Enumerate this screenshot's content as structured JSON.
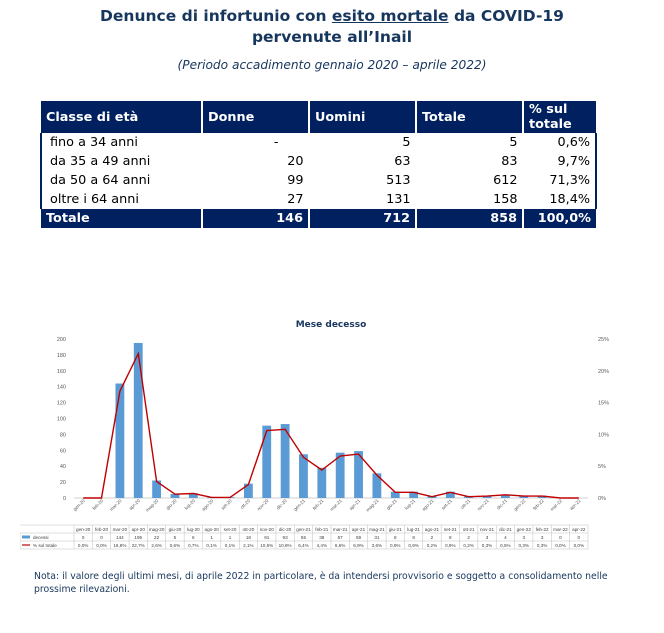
{
  "header": {
    "title_part1": "Denunce di infortunio con ",
    "title_underlined": "esito mortale",
    "title_part2": " da COVID-19",
    "title_line2": "pervenute all’Inail",
    "subtitle": "(Periodo accadimento gennaio 2020 – aprile 2022)"
  },
  "table": {
    "headers": [
      "Classe di età",
      "Donne",
      "Uomini",
      "Totale",
      "% sul totale"
    ],
    "rows": [
      [
        "fino a 34 anni",
        "-",
        "5",
        "5",
        "0,6%"
      ],
      [
        "da 35 a 49 anni",
        "20",
        "63",
        "83",
        "9,7%"
      ],
      [
        "da 50 a 64 anni",
        "99",
        "513",
        "612",
        "71,3%"
      ],
      [
        "oltre i 64 anni",
        "27",
        "131",
        "158",
        "18,4%"
      ]
    ],
    "total": [
      "Totale",
      "146",
      "712",
      "858",
      "100,0%"
    ]
  },
  "chart_data": {
    "type": "bar",
    "title": "Mese decesso",
    "categories": [
      "gen-20",
      "feb-20",
      "mar-20",
      "apr-20",
      "mag-20",
      "giu-20",
      "lug-20",
      "ago-20",
      "set-20",
      "ott-20",
      "nov-20",
      "dic-20",
      "gen-21",
      "feb-21",
      "mar-21",
      "apr-21",
      "mag-21",
      "giu-21",
      "lug-21",
      "ago-21",
      "set-21",
      "ott-21",
      "nov-21",
      "dic-21",
      "gen-22",
      "feb-22",
      "mar-22",
      "apr-22"
    ],
    "series": [
      {
        "name": "decessi",
        "kind": "bar",
        "color": "#5b9bd5",
        "values": [
          0,
          0,
          144,
          195,
          22,
          5,
          6,
          1,
          1,
          18,
          91,
          93,
          55,
          38,
          57,
          59,
          31,
          8,
          8,
          2,
          8,
          2,
          3,
          4,
          3,
          3,
          0,
          0
        ]
      },
      {
        "name": "% sul totale",
        "kind": "line",
        "color": "#c00000",
        "axis": "right",
        "values": [
          0.0,
          0.0,
          16.8,
          22.7,
          2.6,
          0.6,
          0.7,
          0.1,
          0.1,
          2.1,
          10.6,
          10.8,
          6.4,
          4.4,
          6.6,
          6.9,
          3.6,
          0.9,
          0.9,
          0.2,
          0.9,
          0.2,
          0.3,
          0.5,
          0.3,
          0.3,
          0.0,
          0.0
        ]
      }
    ],
    "table_values": {
      "decessi": [
        "0",
        "0",
        "144",
        "195",
        "22",
        "5",
        "6",
        "1",
        "1",
        "18",
        "91",
        "93",
        "55",
        "38",
        "57",
        "59",
        "31",
        "8",
        "8",
        "2",
        "8",
        "2",
        "3",
        "4",
        "3",
        "3",
        "0",
        "0"
      ],
      "pct": [
        "0,0%",
        "0,0%",
        "16,8%",
        "22,7%",
        "2,6%",
        "0,6%",
        "0,7%",
        "0,1%",
        "0,1%",
        "2,1%",
        "10,6%",
        "10,8%",
        "6,4%",
        "4,4%",
        "6,6%",
        "6,9%",
        "3,6%",
        "0,9%",
        "0,9%",
        "0,2%",
        "0,9%",
        "0,2%",
        "0,3%",
        "0,5%",
        "0,3%",
        "0,3%",
        "0,0%",
        "0,0%"
      ]
    },
    "y_left": {
      "ylim": [
        0,
        200
      ],
      "ticks": [
        "0",
        "20",
        "40",
        "60",
        "80",
        "100",
        "120",
        "140",
        "160",
        "180",
        "200"
      ]
    },
    "y_right": {
      "ylim": [
        0,
        25
      ],
      "ticks": [
        "0%",
        "5%",
        "10%",
        "15%",
        "20%",
        "25%"
      ]
    },
    "grid": false,
    "legend_placement": "bottom data table"
  },
  "note": "Nota: il valore degli ultimi mesi, di aprile 2022 in particolare, è da intendersi provvisorio e soggetto a consolidamento nelle prossime rilevazioni."
}
